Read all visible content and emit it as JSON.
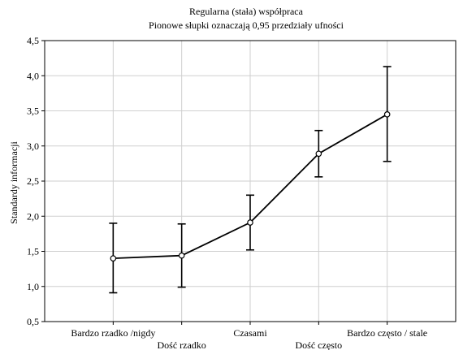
{
  "chart_data": {
    "type": "line",
    "title": "Regularna (stała) współpraca",
    "subtitle": "Pionowe słupki oznaczają 0,95 przedziały ufności",
    "xlabel": "",
    "ylabel": "Standardy informacji",
    "categories": [
      "Bardzo rzadko /nigdy",
      "Dość rzadko",
      "Czasami",
      "Dość często",
      "Bardzo często / stale"
    ],
    "values": [
      1.4,
      1.44,
      1.91,
      2.89,
      3.45
    ],
    "ci_lower": [
      0.91,
      0.99,
      1.52,
      2.56,
      2.78
    ],
    "ci_upper": [
      1.9,
      1.89,
      2.3,
      3.22,
      4.13
    ],
    "ylim": [
      0.5,
      4.5
    ],
    "yticks": [
      "0,5",
      "1,0",
      "1,5",
      "2,0",
      "2,5",
      "3,0",
      "3,5",
      "4,0",
      "4,5"
    ],
    "grid": true
  }
}
